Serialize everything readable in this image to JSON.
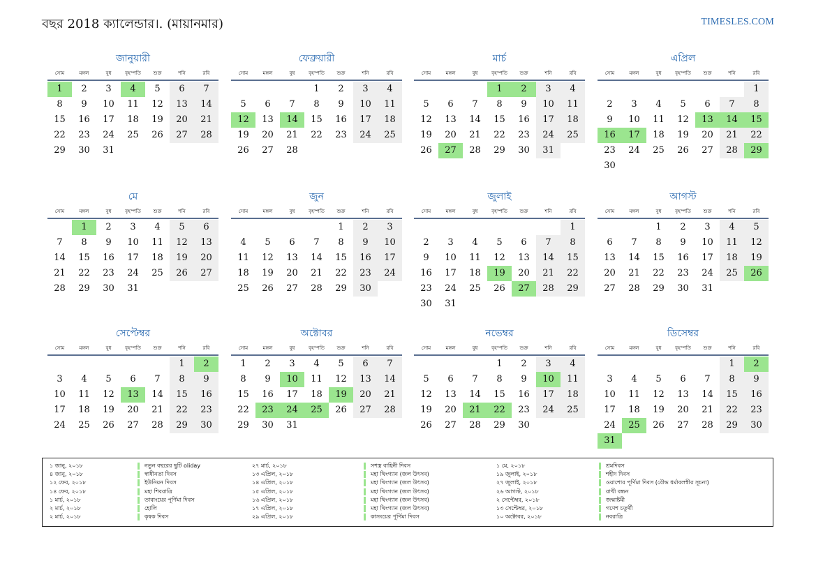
{
  "header": {
    "title": "বছর 2018 ক্যালেন্ডার।. (মায়ানমার)",
    "brand": "TIMESLES.COM"
  },
  "weekdays": [
    "সোম",
    "মঙ্গল",
    "বুধ",
    "বৃহস্পতি",
    "শুক্র",
    "শনি",
    "রবি"
  ],
  "colors": {
    "holiday": "#9be58f",
    "weekend": "#eeeeee",
    "accent": "#2a6ab0",
    "rule": "#5a6f90"
  },
  "months": [
    {
      "name": "জানুয়ারী",
      "offset": 0,
      "days": 31,
      "holidays": [
        1,
        4
      ]
    },
    {
      "name": "ফেব্রুয়ারী",
      "offset": 3,
      "days": 28,
      "holidays": [
        12,
        14
      ]
    },
    {
      "name": "মার্চ",
      "offset": 3,
      "days": 31,
      "holidays": [
        1,
        2,
        27
      ]
    },
    {
      "name": "এপ্রিল",
      "offset": 6,
      "days": 30,
      "holidays": [
        13,
        14,
        15,
        16,
        17,
        29
      ]
    },
    {
      "name": "মে",
      "offset": 1,
      "days": 31,
      "holidays": [
        1
      ]
    },
    {
      "name": "জুন",
      "offset": 4,
      "days": 30,
      "holidays": []
    },
    {
      "name": "জুলাই",
      "offset": 6,
      "days": 31,
      "holidays": [
        19,
        27
      ]
    },
    {
      "name": "আগস্ট",
      "offset": 2,
      "days": 31,
      "holidays": [
        26
      ]
    },
    {
      "name": "সেপ্টেম্বর",
      "offset": 5,
      "days": 30,
      "holidays": [
        2,
        13
      ]
    },
    {
      "name": "অক্টোবর",
      "offset": 0,
      "days": 31,
      "holidays": [
        10,
        19,
        23,
        24,
        25
      ]
    },
    {
      "name": "নভেম্বর",
      "offset": 3,
      "days": 30,
      "holidays": [
        10,
        21,
        22
      ]
    },
    {
      "name": "ডিসেম্বর",
      "offset": 5,
      "days": 31,
      "holidays": [
        2,
        25,
        31
      ]
    }
  ],
  "legend": [
    [
      {
        "date": "১ জানু, ২০১৮",
        "name": "নতুন বছরের ছুটি oliday"
      },
      {
        "date": "৪ জানু, ২০১৮",
        "name": "স্বাধীনতা দিবস"
      },
      {
        "date": "১২ ফেব, ২০১৮",
        "name": "ইউনিয়ন দিবস"
      },
      {
        "date": "১৪ ফেব, ২০১৮",
        "name": "মহা শিবরাত্রি"
      },
      {
        "date": "১ মার্চ, ২০১৮",
        "name": "তাবাংয়ের পূর্ণিমা দিবস"
      },
      {
        "date": "২ মার্চ, ২০১৮",
        "name": "হোলি"
      },
      {
        "date": "২ মার্চ, ২০১৮",
        "name": "কৃষক দিবস"
      }
    ],
    [
      {
        "date": "২৭ মার্চ, ২০১৮",
        "name": "সশস্ত্র বাহিনী দিবস"
      },
      {
        "date": "১৩ এপ্রিল, ২০১৮",
        "name": "মহা থিংগ্যান (জল উৎসব)"
      },
      {
        "date": "১৪ এপ্রিল, ২০১৮",
        "name": "মহা থিংগ্যান (জল উৎসব)"
      },
      {
        "date": "১৫ এপ্রিল, ২০১৮",
        "name": "মহা থিংগ্যান (জল উৎসব)"
      },
      {
        "date": "১৬ এপ্রিল, ২০১৮",
        "name": "মহা থিংগ্যান (জল উৎসব)"
      },
      {
        "date": "১৭ এপ্রিল, ২০১৮",
        "name": "মহা থিংগ্যান (জল উৎসব)"
      },
      {
        "date": "২৯ এপ্রিল, ২০১৮",
        "name": "কাসংয়ের পূর্ণিমা দিবস"
      }
    ],
    [
      {
        "date": "১ মে, ২০১৮",
        "name": "শ্রমদিবস"
      },
      {
        "date": "১৯ জুলাই, ২০১৮",
        "name": "শহীদ দিবস"
      },
      {
        "date": "২৭ জুলাই, ২০১৮",
        "name": "ওয়াশোর পূর্ণিমা দিবস (বৌদ্ধ ধর্মাবলম্বীর সূচনা)"
      },
      {
        "date": "২৬ আগস্ট, ২০১৮",
        "name": "রাখী বন্ধন"
      },
      {
        "date": "২ সেপ্টেম্বর, ২০১৮",
        "name": "জন্মাষ্টমী"
      },
      {
        "date": "১৩ সেপ্টেম্বর, ২০১৮",
        "name": "গণেশ চতুর্থী"
      },
      {
        "date": "১০ অক্টোবর, ২০১৮",
        "name": "নবরাত্রি"
      }
    ]
  ]
}
